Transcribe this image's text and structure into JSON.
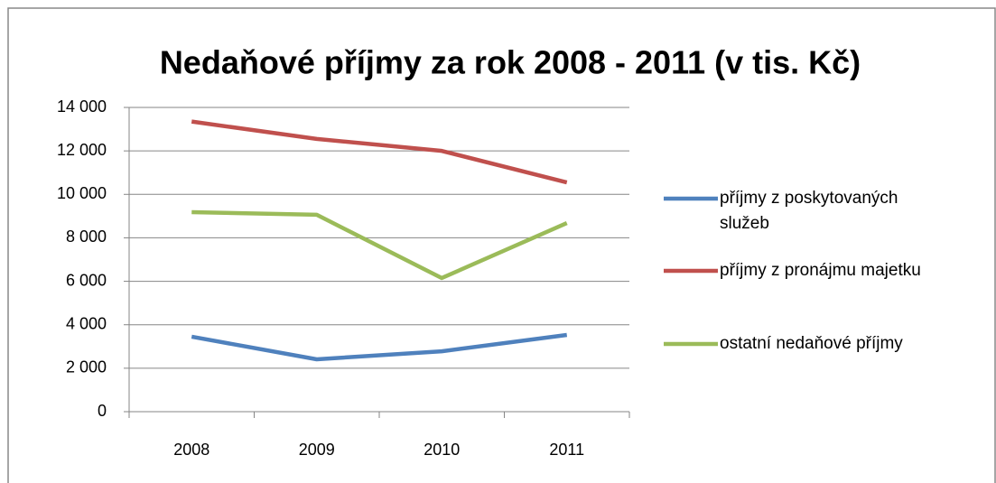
{
  "chart_data": {
    "type": "line",
    "title": "Nedaňové příjmy za rok 2008 - 2011 (v tis. Kč)",
    "categories": [
      "2008",
      "2009",
      "2010",
      "2011"
    ],
    "series": [
      {
        "name": "příjmy z poskytovaných služeb",
        "color": "#4f81bd",
        "values": [
          3450,
          2410,
          2780,
          3530
        ]
      },
      {
        "name": "příjmy z pronájmu majetku",
        "color": "#c0504d",
        "values": [
          13350,
          12550,
          12000,
          10550
        ]
      },
      {
        "name": "ostatní nedaňové příjmy",
        "color": "#9bbb59",
        "values": [
          9180,
          9060,
          6150,
          8680
        ]
      }
    ],
    "ylim": [
      0,
      14000
    ],
    "yticks": [
      0,
      {
        "value": 2000,
        "label": "2 000"
      },
      {
        "value": 4000,
        "label": "4 000"
      },
      {
        "value": 6000,
        "label": "6 000"
      },
      {
        "value": 8000,
        "label": "8 000"
      },
      {
        "value": 10000,
        "label": "10 000"
      },
      {
        "value": 12000,
        "label": "12 000"
      },
      {
        "value": 14000,
        "label": "14 000"
      }
    ],
    "grid": true,
    "legend": "right"
  }
}
